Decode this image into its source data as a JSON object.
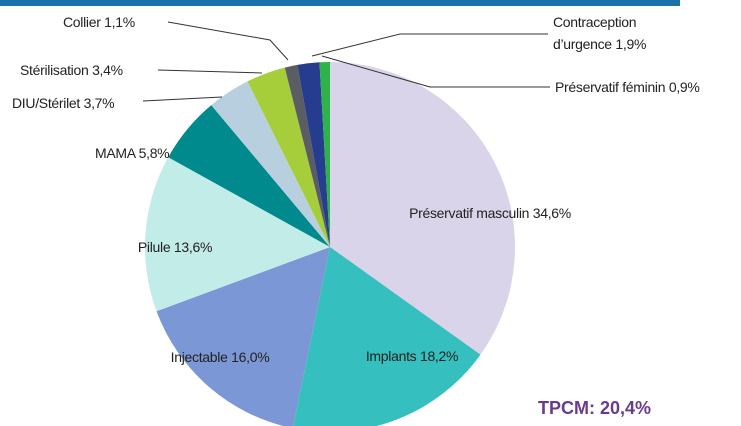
{
  "chart_data": {
    "type": "pie",
    "categories": [
      "Préservatif masculin",
      "Implants",
      "Injectable",
      "Pilule",
      "MAMA",
      "DIU/Stérilet",
      "Stérilisation",
      "Collier",
      "Contraception d’urgence",
      "Préservatif féminin"
    ],
    "values": [
      34.6,
      18.2,
      16.0,
      13.6,
      5.8,
      3.7,
      3.4,
      1.1,
      1.9,
      0.9
    ],
    "value_labels": [
      "34,6%",
      "18,2%",
      "16,0%",
      "13,6%",
      "5,8%",
      "3,7%",
      "3,4%",
      "1,1%",
      "1,9%",
      "0,9%"
    ],
    "colors": [
      "#d9d4e9",
      "#36bfbf",
      "#7b97d6",
      "#c2ece8",
      "#008a8e",
      "#b8cfe0",
      "#a6cd3a",
      "#5a5e62",
      "#263c8f",
      "#2eb34a"
    ],
    "annotation": "TPCM: 20,4%"
  }
}
